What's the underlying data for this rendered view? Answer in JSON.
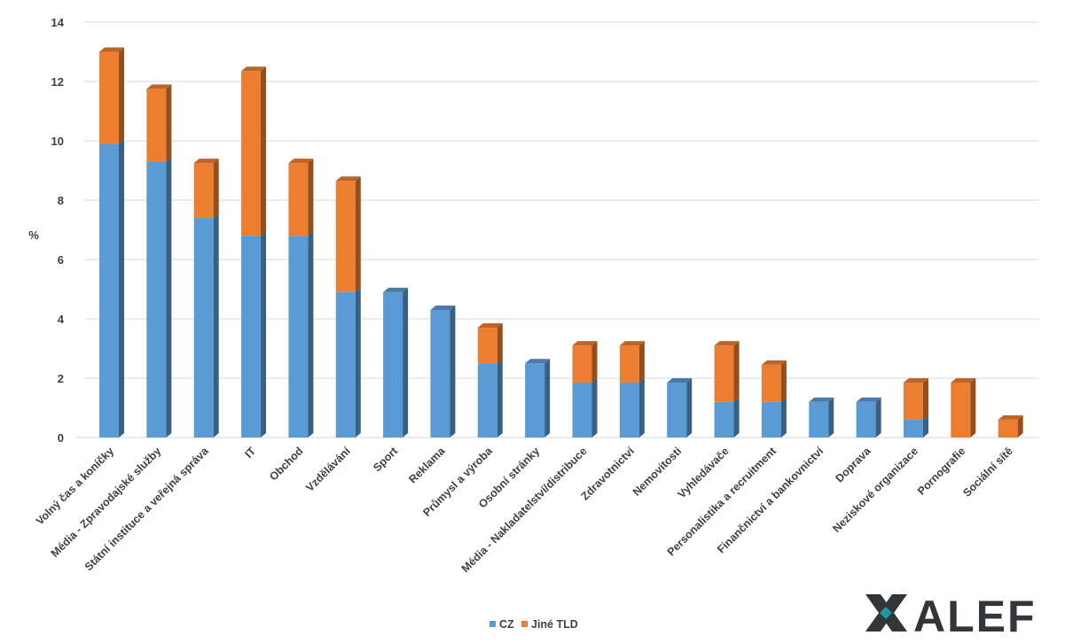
{
  "chart_data": {
    "type": "bar",
    "stacked": true,
    "style": "3d-column",
    "categories": [
      "Volný čas a koníčky",
      "Média - Zpravodajské služby",
      "Státní instituce a veřejná správa",
      "IT",
      "Obchod",
      "Vzdělávání",
      "Sport",
      "Reklama",
      "Průmysl a výroba",
      "Osobní stránky",
      "Média - Nakladatelství/distribuce",
      "Zdravotnictví",
      "Nemovitosti",
      "Vyhledávače",
      "Personalistika a recruitment",
      "Finančnictví a bankovnictví",
      "Doprava",
      "Neziskové organizace",
      "Pornografie",
      "Sociální sítě"
    ],
    "series": [
      {
        "name": "CZ",
        "color": "#5B9BD5",
        "values": [
          9.9,
          9.3,
          7.4,
          6.8,
          6.8,
          4.9,
          4.9,
          4.3,
          2.5,
          2.5,
          1.85,
          1.85,
          1.85,
          1.2,
          1.2,
          1.2,
          1.2,
          0.6,
          0,
          0
        ]
      },
      {
        "name": "Jiné TLD",
        "color": "#ED7D31",
        "values": [
          3.1,
          2.45,
          1.85,
          5.55,
          2.45,
          3.75,
          0,
          0,
          1.2,
          0,
          1.25,
          1.25,
          0,
          1.9,
          1.25,
          0,
          0,
          1.25,
          1.85,
          0.6
        ]
      }
    ],
    "title": "",
    "xlabel": "",
    "ylabel": "%",
    "ylim": [
      0,
      14
    ],
    "yticks": [
      0,
      2,
      4,
      6,
      8,
      10,
      12,
      14
    ],
    "grid": true,
    "legend": "bottom"
  },
  "logo": {
    "text": "ALEF",
    "icon": "alef-x-icon",
    "color": "#333638",
    "accent": "#1a9aa0"
  }
}
